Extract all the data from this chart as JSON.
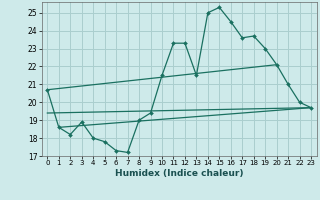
{
  "xlabel": "Humidex (Indice chaleur)",
  "bg_color": "#ceeaea",
  "grid_color": "#aacece",
  "line_color": "#1a7060",
  "xlim": [
    -0.5,
    23.5
  ],
  "ylim": [
    17,
    25.6
  ],
  "yticks": [
    17,
    18,
    19,
    20,
    21,
    22,
    23,
    24,
    25
  ],
  "xticks": [
    0,
    1,
    2,
    3,
    4,
    5,
    6,
    7,
    8,
    9,
    10,
    11,
    12,
    13,
    14,
    15,
    16,
    17,
    18,
    19,
    20,
    21,
    22,
    23
  ],
  "line1_x": [
    0,
    1,
    2,
    3,
    4,
    5,
    6,
    7,
    8,
    9,
    10,
    11,
    12,
    13,
    14,
    15,
    16,
    17,
    18,
    19,
    20,
    21,
    22,
    23
  ],
  "line1_y": [
    20.7,
    18.6,
    18.2,
    18.9,
    18.0,
    17.8,
    17.3,
    17.2,
    19.0,
    19.4,
    21.5,
    23.3,
    23.3,
    21.5,
    25.0,
    25.3,
    24.5,
    23.6,
    23.7,
    23.0,
    22.1,
    21.0,
    20.0,
    19.7
  ],
  "line2_x": [
    0,
    20
  ],
  "line2_y": [
    20.7,
    22.1
  ],
  "line3_x": [
    0,
    23
  ],
  "line3_y": [
    19.4,
    19.7
  ],
  "line4_x": [
    1,
    23
  ],
  "line4_y": [
    18.6,
    19.7
  ]
}
